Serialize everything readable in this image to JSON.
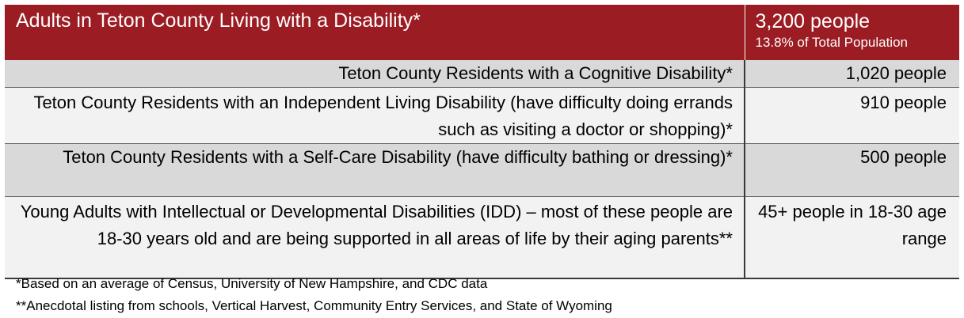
{
  "header": {
    "title": "Adults in Teton County Living with a Disability*",
    "value": "3,200 people",
    "subvalue": "13.8% of Total Population"
  },
  "rows": [
    {
      "label": "Teton County Residents with a Cognitive Disability*",
      "value": "1,020 people"
    },
    {
      "label": "Teton County Residents with an Independent Living Disability (have difficulty doing errands such as visiting a doctor or shopping)*",
      "value": "910 people"
    },
    {
      "label": "Teton County Residents with a Self-Care Disability (have difficulty bathing or dressing)*",
      "value": "500 people"
    },
    {
      "label": "Young Adults with Intellectual or Developmental Disabilities (IDD) – most of these people are 18-30 years old and are being supported in all areas of life by their aging parents**",
      "value": "45+ people in 18-30 age range"
    }
  ],
  "footnotes": [
    "*Based on an average of Census, University of New Hampshire, and CDC data",
    "**Anecdotal listing from schools, Vertical Harvest, Community Entry Services, and State of Wyoming"
  ],
  "colors": {
    "header_bg": "#9b1c23",
    "row_shade": "#d9d9d9",
    "row_light": "#f2f2f2"
  }
}
